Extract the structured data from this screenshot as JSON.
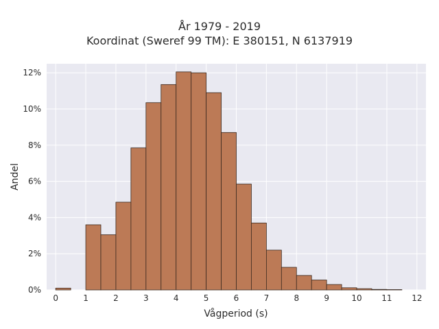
{
  "chart_data": {
    "type": "bar",
    "title_lines": [
      "År 1979 - 2019",
      "Koordinat (Sweref 99 TM): E 380151, N 6137919"
    ],
    "xlabel": "Vågperiod (s)",
    "ylabel": "Andel",
    "xlim": [
      -0.3,
      12.3
    ],
    "ylim": [
      0,
      12.5
    ],
    "x_ticks": [
      0,
      1,
      2,
      3,
      4,
      5,
      6,
      7,
      8,
      9,
      10,
      11,
      12
    ],
    "x_tick_labels": [
      "0",
      "1",
      "2",
      "3",
      "4",
      "5",
      "6",
      "7",
      "8",
      "9",
      "10",
      "11",
      "12"
    ],
    "y_ticks": [
      0,
      2,
      4,
      6,
      8,
      10,
      12
    ],
    "y_tick_labels": [
      "0%",
      "2%",
      "4%",
      "6%",
      "8%",
      "10%",
      "12%"
    ],
    "bin_width": 0.5,
    "bin_starts": [
      0,
      1,
      1.5,
      2,
      2.5,
      3,
      3.5,
      4,
      4.5,
      5,
      5.5,
      6,
      6.5,
      7,
      7.5,
      8,
      8.5,
      9,
      9.5,
      10,
      10.5,
      11
    ],
    "values": [
      0.1,
      3.6,
      3.05,
      4.85,
      7.85,
      10.35,
      11.35,
      12.05,
      12.0,
      10.9,
      8.7,
      5.85,
      3.7,
      2.2,
      1.25,
      0.8,
      0.55,
      0.3,
      0.12,
      0.07,
      0.03,
      0.02
    ],
    "grid": true,
    "bar_color": "#bc7a56",
    "bar_edge_color": "#3a2a20",
    "background_color": "#e9e9f1",
    "grid_color": "#ffffff"
  }
}
